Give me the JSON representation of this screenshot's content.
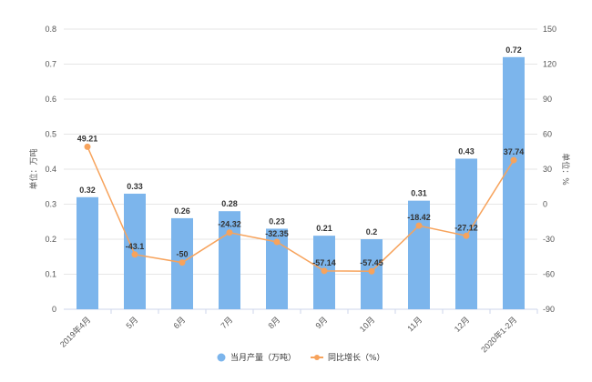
{
  "chart_data": {
    "type": "bar+line",
    "categories": [
      "2019年4月",
      "5月",
      "6月",
      "7月",
      "8月",
      "9月",
      "10月",
      "11月",
      "12月",
      "2020年1-2月"
    ],
    "series": [
      {
        "name": "当月产量（万吨）",
        "type": "bar",
        "axis": "left",
        "color": "#7cb5ec",
        "values": [
          0.32,
          0.33,
          0.26,
          0.28,
          0.23,
          0.21,
          0.2,
          0.31,
          0.43,
          0.72
        ],
        "labels": [
          "0.32",
          "0.33",
          "0.26",
          "0.28",
          "0.23",
          "0.21",
          "0.2",
          "0.31",
          "0.43",
          "0.72"
        ]
      },
      {
        "name": "同比增长（%）",
        "type": "line",
        "axis": "right",
        "color": "#f7a35c",
        "values": [
          49.21,
          -43.1,
          -50,
          -24.32,
          -32.35,
          -57.14,
          -57.45,
          -18.42,
          -27.12,
          37.74
        ],
        "labels": [
          "49.21",
          "-43.1",
          "-50",
          "-24.32",
          "-32.35",
          "-57.14",
          "-57.45",
          "-18.42",
          "-27.12",
          "37.74"
        ]
      }
    ],
    "ylabel": "单位：万吨",
    "y2label": "单位：%",
    "ylim": [
      0,
      0.8
    ],
    "y2lim": [
      -90,
      150
    ],
    "yticks": [
      "0",
      "0.1",
      "0.2",
      "0.3",
      "0.4",
      "0.5",
      "0.6",
      "0.7",
      "0.8"
    ],
    "y2ticks": [
      "-90",
      "-60",
      "-30",
      "0",
      "30",
      "60",
      "90",
      "120",
      "150"
    ],
    "grid": true,
    "legend": "bottom"
  }
}
